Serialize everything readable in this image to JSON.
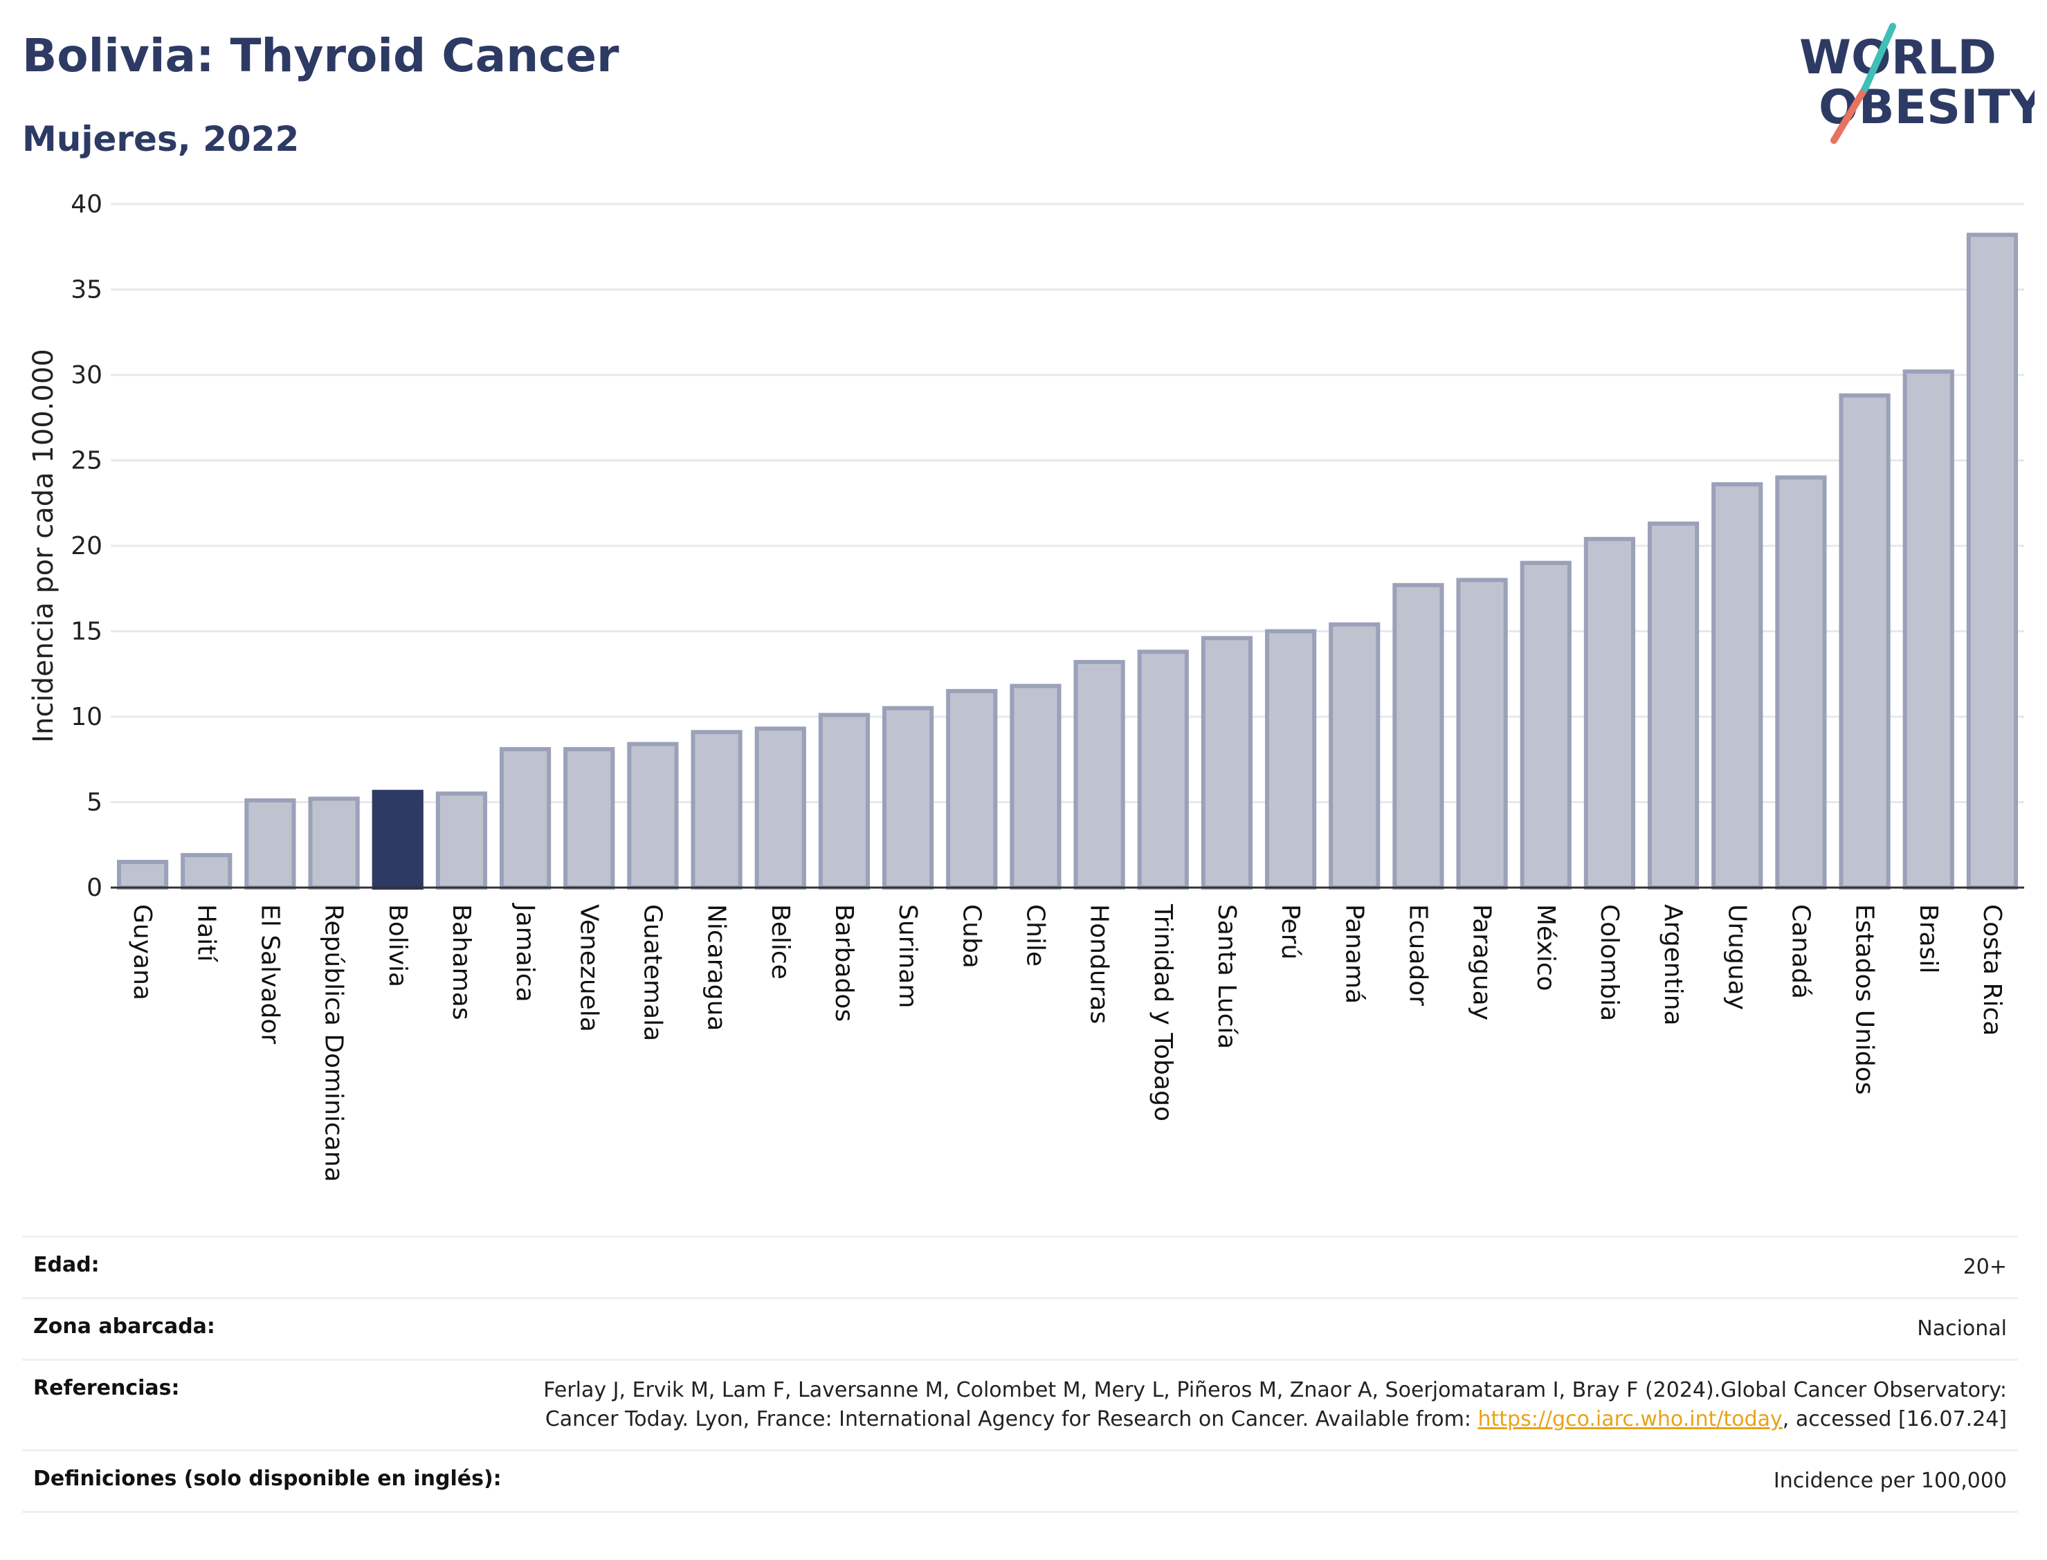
{
  "header": {
    "title": "Bolivia: Thyroid Cancer",
    "subtitle": "Mujeres, 2022"
  },
  "logo": {
    "line1": "WORLD",
    "line2": "OBESITY"
  },
  "chart_data": {
    "type": "bar",
    "ylabel": "Incidencia por cada 100.000",
    "ylim": [
      0,
      40
    ],
    "yticks": [
      0,
      5,
      10,
      15,
      20,
      25,
      30,
      35,
      40
    ],
    "grid": true,
    "highlight": "Bolivia",
    "colors": {
      "bar": "#bfc3d0",
      "bar_edge": "#9aa1b8",
      "highlight": "#2d3a64",
      "grid": "#e6e8ee"
    },
    "categories": [
      "Guyana",
      "Haití",
      "El Salvador",
      "República Dominicana",
      "Bolivia",
      "Bahamas",
      "Jamaica",
      "Venezuela",
      "Guatemala",
      "Nicaragua",
      "Belice",
      "Barbados",
      "Surinam",
      "Cuba",
      "Chile",
      "Honduras",
      "Trinidad y Tobago",
      "Santa Lucía",
      "Perú",
      "Panamá",
      "Ecuador",
      "Paraguay",
      "México",
      "Colombia",
      "Argentina",
      "Uruguay",
      "Canadá",
      "Estados Unidos",
      "Brasil",
      "Costa Rica"
    ],
    "values": [
      1.5,
      1.9,
      5.1,
      5.2,
      5.6,
      5.5,
      8.1,
      8.1,
      8.4,
      9.1,
      9.3,
      10.1,
      10.5,
      11.5,
      11.8,
      13.2,
      13.8,
      14.6,
      15.0,
      15.4,
      17.7,
      18.0,
      19.0,
      20.4,
      21.3,
      23.6,
      24.0,
      28.8,
      30.2,
      38.2
    ]
  },
  "meta": {
    "age_label": "Edad:",
    "age_value": "20+",
    "area_label": "Zona abarcada:",
    "area_value": "Nacional",
    "ref_label": "Referencias:",
    "ref_text_1": "Ferlay J, Ervik M, Lam F, Laversanne M, Colombet M, Mery L, Piñeros M, Znaor A, Soerjomataram I, Bray F (2024).Global Cancer Observatory: Cancer Today. Lyon, France: International Agency for Research on Cancer. Available from: ",
    "ref_link": "https://gco.iarc.who.int/today",
    "ref_text_2": ", accessed [16.07.24]",
    "def_label": "Definiciones (solo disponible en inglés):",
    "def_value": "Incidence per 100,000"
  }
}
